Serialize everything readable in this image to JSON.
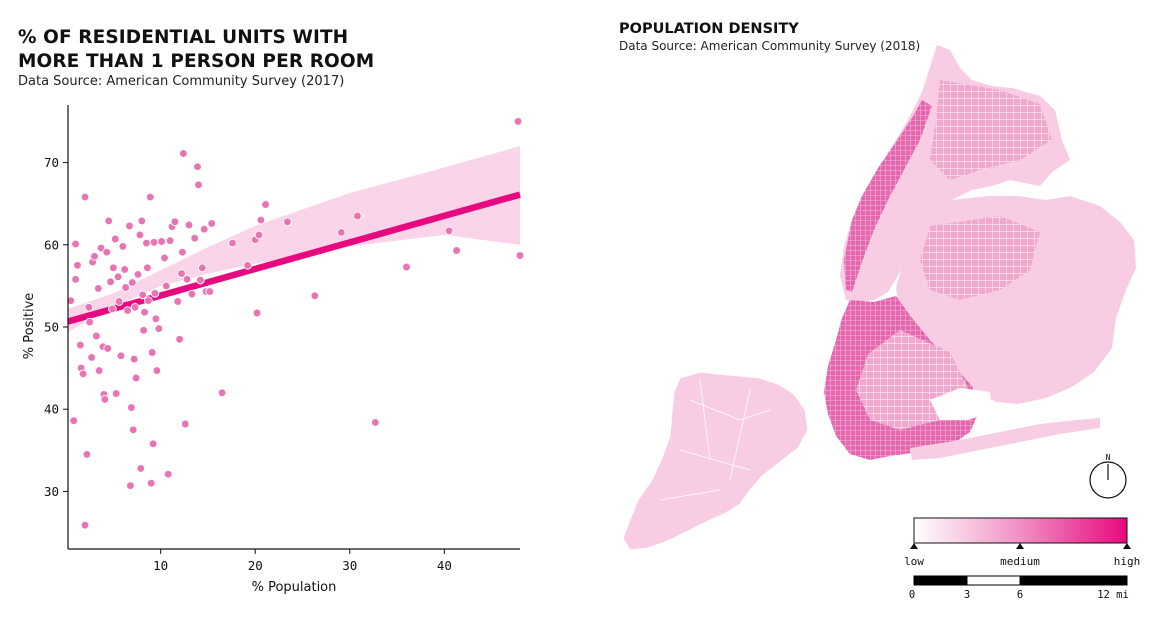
{
  "colors": {
    "accent": "#e6097f",
    "point": "#e874b4",
    "band": "#f8c6e0",
    "land": "#f8cde4",
    "bar": "#000000"
  },
  "left": {
    "title_line1": "% OF RESIDENTIAL UNITS WITH",
    "title_line2": "MORE THAN 1 PERSON PER ROOM",
    "subtitle": "Data Source: American Community Survey (2017)"
  },
  "right": {
    "title": "POPULATION DENSITY",
    "subtitle": "Data Source: American Community Survey (2018)",
    "compass_letter": "N",
    "legend": {
      "low": "low",
      "medium": "medium",
      "high": "high"
    },
    "scale": {
      "ticks": [
        "0",
        "3",
        "6",
        "12 mi"
      ]
    }
  },
  "chart_data": {
    "type": "scatter",
    "xlabel": "% Population",
    "ylabel": "% Positive",
    "xlim": [
      0.2,
      48
    ],
    "ylim": [
      23,
      77
    ],
    "xticks": [
      10,
      20,
      30,
      40
    ],
    "yticks": [
      30,
      40,
      50,
      60,
      70
    ],
    "regression": {
      "intercept": 50.6,
      "slope": 0.323
    },
    "confidence_band": {
      "x": [
        0.2,
        5,
        10,
        15,
        20,
        30,
        40,
        48
      ],
      "lower": [
        49.4,
        52.4,
        55.0,
        56.5,
        57.7,
        59.8,
        61.2,
        60.0
      ],
      "upper": [
        52.2,
        54.1,
        56.9,
        59.7,
        62.3,
        66.3,
        69.4,
        72.0
      ]
    },
    "points": [
      [
        0.5,
        53.2
      ],
      [
        0.8,
        38.6
      ],
      [
        1.0,
        60.1
      ],
      [
        1.0,
        55.8
      ],
      [
        1.2,
        57.5
      ],
      [
        1.5,
        47.8
      ],
      [
        1.6,
        45.0
      ],
      [
        1.8,
        44.3
      ],
      [
        2.0,
        65.8
      ],
      [
        2.0,
        25.9
      ],
      [
        2.2,
        34.5
      ],
      [
        2.4,
        52.4
      ],
      [
        2.5,
        50.6
      ],
      [
        2.7,
        46.3
      ],
      [
        2.8,
        57.9
      ],
      [
        3.0,
        58.6
      ],
      [
        3.2,
        48.9
      ],
      [
        3.4,
        54.7
      ],
      [
        3.5,
        44.7
      ],
      [
        3.7,
        59.6
      ],
      [
        3.9,
        47.6
      ],
      [
        4.0,
        41.8
      ],
      [
        4.1,
        41.2
      ],
      [
        4.3,
        59.1
      ],
      [
        4.4,
        47.4
      ],
      [
        4.5,
        62.9
      ],
      [
        4.7,
        55.5
      ],
      [
        4.9,
        52.2
      ],
      [
        5.0,
        57.2
      ],
      [
        5.2,
        60.7
      ],
      [
        5.3,
        41.9
      ],
      [
        5.5,
        56.1
      ],
      [
        5.6,
        53.1
      ],
      [
        5.8,
        46.5
      ],
      [
        6.0,
        59.8
      ],
      [
        6.2,
        57.0
      ],
      [
        6.3,
        54.8
      ],
      [
        6.5,
        52.0
      ],
      [
        6.7,
        62.3
      ],
      [
        6.8,
        30.7
      ],
      [
        6.9,
        40.2
      ],
      [
        7.0,
        55.4
      ],
      [
        7.1,
        37.5
      ],
      [
        7.2,
        46.1
      ],
      [
        7.3,
        52.4
      ],
      [
        7.4,
        43.8
      ],
      [
        7.6,
        56.4
      ],
      [
        7.8,
        61.2
      ],
      [
        8.0,
        62.9
      ],
      [
        7.9,
        32.8
      ],
      [
        8.1,
        53.9
      ],
      [
        8.2,
        49.6
      ],
      [
        8.3,
        51.8
      ],
      [
        8.5,
        60.2
      ],
      [
        8.6,
        57.2
      ],
      [
        8.7,
        53.2
      ],
      [
        8.9,
        65.8
      ],
      [
        9.0,
        31.0
      ],
      [
        9.1,
        46.9
      ],
      [
        9.2,
        35.8
      ],
      [
        9.3,
        60.3
      ],
      [
        9.4,
        54.1
      ],
      [
        9.5,
        51.0
      ],
      [
        9.6,
        44.7
      ],
      [
        9.8,
        49.8
      ],
      [
        10.1,
        60.4
      ],
      [
        10.4,
        58.4
      ],
      [
        10.6,
        55.0
      ],
      [
        10.8,
        32.1
      ],
      [
        11.0,
        60.5
      ],
      [
        11.2,
        62.2
      ],
      [
        11.5,
        62.8
      ],
      [
        11.8,
        53.1
      ],
      [
        12.0,
        48.5
      ],
      [
        12.2,
        56.5
      ],
      [
        12.3,
        59.1
      ],
      [
        12.4,
        71.1
      ],
      [
        12.6,
        38.2
      ],
      [
        12.8,
        55.8
      ],
      [
        13.0,
        62.4
      ],
      [
        13.3,
        54.0
      ],
      [
        13.6,
        60.8
      ],
      [
        13.9,
        69.5
      ],
      [
        14.0,
        67.3
      ],
      [
        14.2,
        55.7
      ],
      [
        14.4,
        57.2
      ],
      [
        14.6,
        61.9
      ],
      [
        14.8,
        54.3
      ],
      [
        15.2,
        54.3
      ],
      [
        15.4,
        62.6
      ],
      [
        16.5,
        42.0
      ],
      [
        17.6,
        60.2
      ],
      [
        19.2,
        57.5
      ],
      [
        20.0,
        60.6
      ],
      [
        20.2,
        51.7
      ],
      [
        20.4,
        61.2
      ],
      [
        20.6,
        63.0
      ],
      [
        21.1,
        64.9
      ],
      [
        23.4,
        62.8
      ],
      [
        26.3,
        53.8
      ],
      [
        29.1,
        61.5
      ],
      [
        30.8,
        63.5
      ],
      [
        32.7,
        38.4
      ],
      [
        36.0,
        57.3
      ],
      [
        40.5,
        61.7
      ],
      [
        41.3,
        59.3
      ],
      [
        47.8,
        75.0
      ],
      [
        48.0,
        58.7
      ]
    ]
  }
}
